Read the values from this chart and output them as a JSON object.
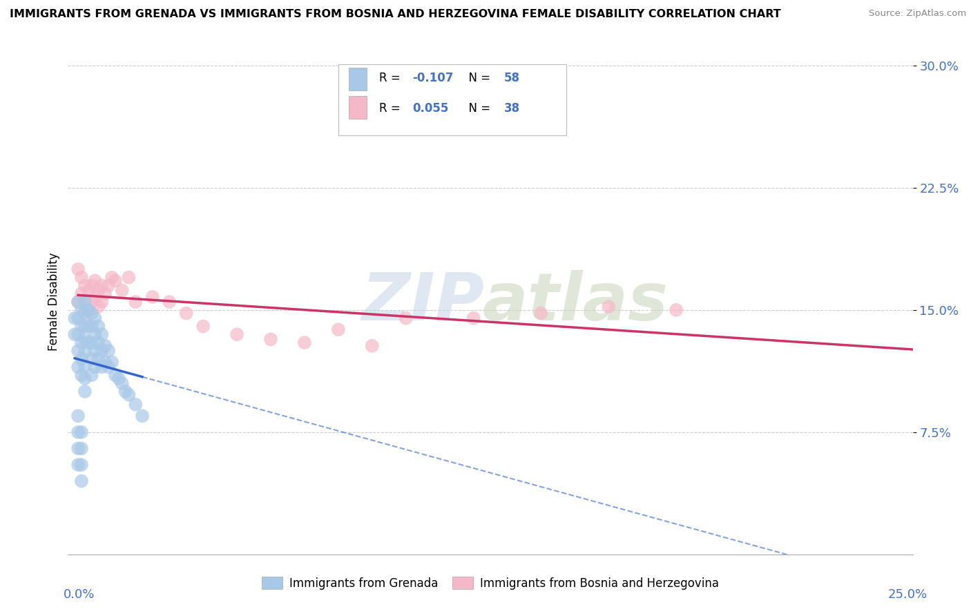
{
  "title": "IMMIGRANTS FROM GRENADA VS IMMIGRANTS FROM BOSNIA AND HERZEGOVINA FEMALE DISABILITY CORRELATION CHART",
  "source": "Source: ZipAtlas.com",
  "ylabel": "Female Disability",
  "xlim": [
    0.0,
    0.25
  ],
  "ylim": [
    0.0,
    0.31
  ],
  "legend1_r": "-0.107",
  "legend1_n": "58",
  "legend2_r": "0.055",
  "legend2_n": "38",
  "blue_color": "#a8c8e8",
  "pink_color": "#f4b8c8",
  "blue_line_color": "#3366cc",
  "pink_line_color": "#cc3366",
  "grenada_x": [
    0.002,
    0.002,
    0.003,
    0.003,
    0.003,
    0.003,
    0.003,
    0.004,
    0.004,
    0.004,
    0.004,
    0.004,
    0.005,
    0.005,
    0.005,
    0.005,
    0.005,
    0.005,
    0.005,
    0.005,
    0.006,
    0.006,
    0.006,
    0.007,
    0.007,
    0.007,
    0.007,
    0.007,
    0.008,
    0.008,
    0.008,
    0.008,
    0.009,
    0.009,
    0.009,
    0.01,
    0.01,
    0.01,
    0.011,
    0.011,
    0.012,
    0.012,
    0.013,
    0.014,
    0.015,
    0.016,
    0.017,
    0.018,
    0.02,
    0.022,
    0.003,
    0.003,
    0.003,
    0.003,
    0.004,
    0.004,
    0.004,
    0.004
  ],
  "grenada_y": [
    0.145,
    0.135,
    0.155,
    0.145,
    0.135,
    0.125,
    0.115,
    0.15,
    0.14,
    0.13,
    0.12,
    0.11,
    0.155,
    0.148,
    0.14,
    0.132,
    0.124,
    0.116,
    0.108,
    0.1,
    0.15,
    0.14,
    0.13,
    0.148,
    0.14,
    0.13,
    0.12,
    0.11,
    0.145,
    0.135,
    0.125,
    0.115,
    0.14,
    0.13,
    0.12,
    0.135,
    0.125,
    0.115,
    0.128,
    0.118,
    0.125,
    0.115,
    0.118,
    0.11,
    0.108,
    0.105,
    0.1,
    0.098,
    0.092,
    0.085,
    0.085,
    0.075,
    0.065,
    0.055,
    0.075,
    0.065,
    0.055,
    0.045
  ],
  "bosnia_x": [
    0.003,
    0.003,
    0.004,
    0.004,
    0.005,
    0.005,
    0.005,
    0.006,
    0.006,
    0.007,
    0.007,
    0.008,
    0.008,
    0.009,
    0.009,
    0.01,
    0.01,
    0.011,
    0.012,
    0.013,
    0.014,
    0.016,
    0.018,
    0.02,
    0.025,
    0.03,
    0.035,
    0.04,
    0.05,
    0.06,
    0.07,
    0.08,
    0.09,
    0.1,
    0.12,
    0.14,
    0.16,
    0.18
  ],
  "bosnia_y": [
    0.155,
    0.175,
    0.16,
    0.17,
    0.155,
    0.165,
    0.148,
    0.162,
    0.15,
    0.165,
    0.155,
    0.168,
    0.158,
    0.162,
    0.152,
    0.165,
    0.155,
    0.16,
    0.165,
    0.17,
    0.168,
    0.162,
    0.17,
    0.155,
    0.158,
    0.155,
    0.148,
    0.14,
    0.135,
    0.132,
    0.13,
    0.138,
    0.128,
    0.145,
    0.145,
    0.148,
    0.152,
    0.15
  ]
}
